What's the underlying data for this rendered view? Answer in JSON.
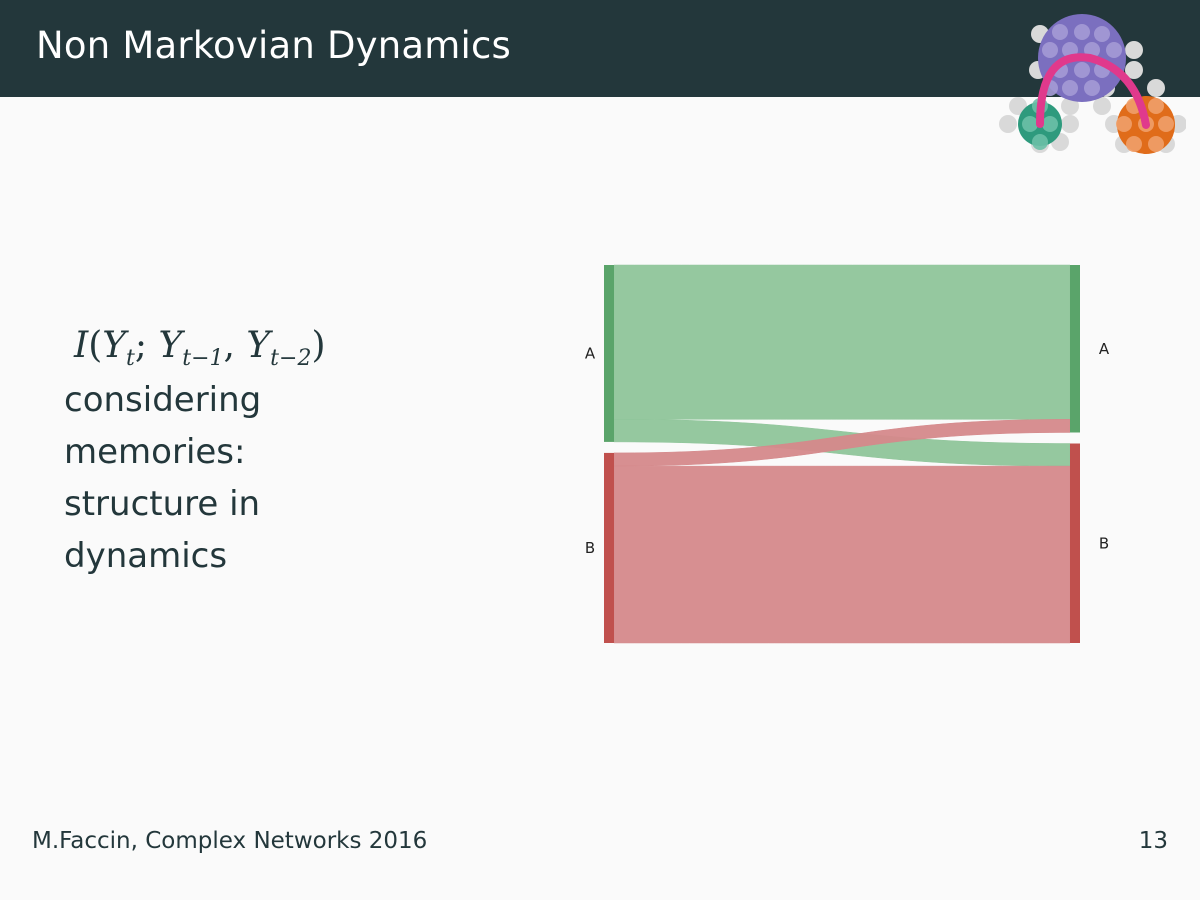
{
  "slide": {
    "title": "Non Markovian Dynamics",
    "formula": {
      "func": "I",
      "open": "(",
      "y1": "Y",
      "s1": "t",
      "sep1": "; ",
      "y2": "Y",
      "s2": "t−1",
      "sep2": ", ",
      "y3": "Y",
      "s3": "t−2",
      "close": ")"
    },
    "caption": "considering\nmemories:\nstructure in\ndynamics",
    "footer": {
      "author": "M.Faccin, Complex Networks 2016",
      "page": "13"
    }
  },
  "colors": {
    "header_bg": "#23373b",
    "green": "#5aa46a",
    "green_flow": "#8fc59a",
    "red": "#c0504d",
    "red_flow": "#d5898b",
    "logo_purple": "#7b6fbf",
    "logo_green": "#2e9a7d",
    "logo_orange": "#e06c1a",
    "logo_pink": "#e0398c"
  },
  "chart_data": {
    "type": "sankey",
    "left_nodes": [
      {
        "label": "A",
        "color": "#5aa46a"
      },
      {
        "label": "B",
        "color": "#c0504d"
      }
    ],
    "right_nodes": [
      {
        "label": "A",
        "color": "#5aa46a"
      },
      {
        "label": "B",
        "color": "#c0504d"
      }
    ],
    "flows": [
      {
        "source": "A",
        "target": "A",
        "value": 0.41
      },
      {
        "source": "A",
        "target": "B",
        "value": 0.06
      },
      {
        "source": "B",
        "target": "A",
        "value": 0.035
      },
      {
        "source": "B",
        "target": "B",
        "value": 0.47
      }
    ]
  }
}
